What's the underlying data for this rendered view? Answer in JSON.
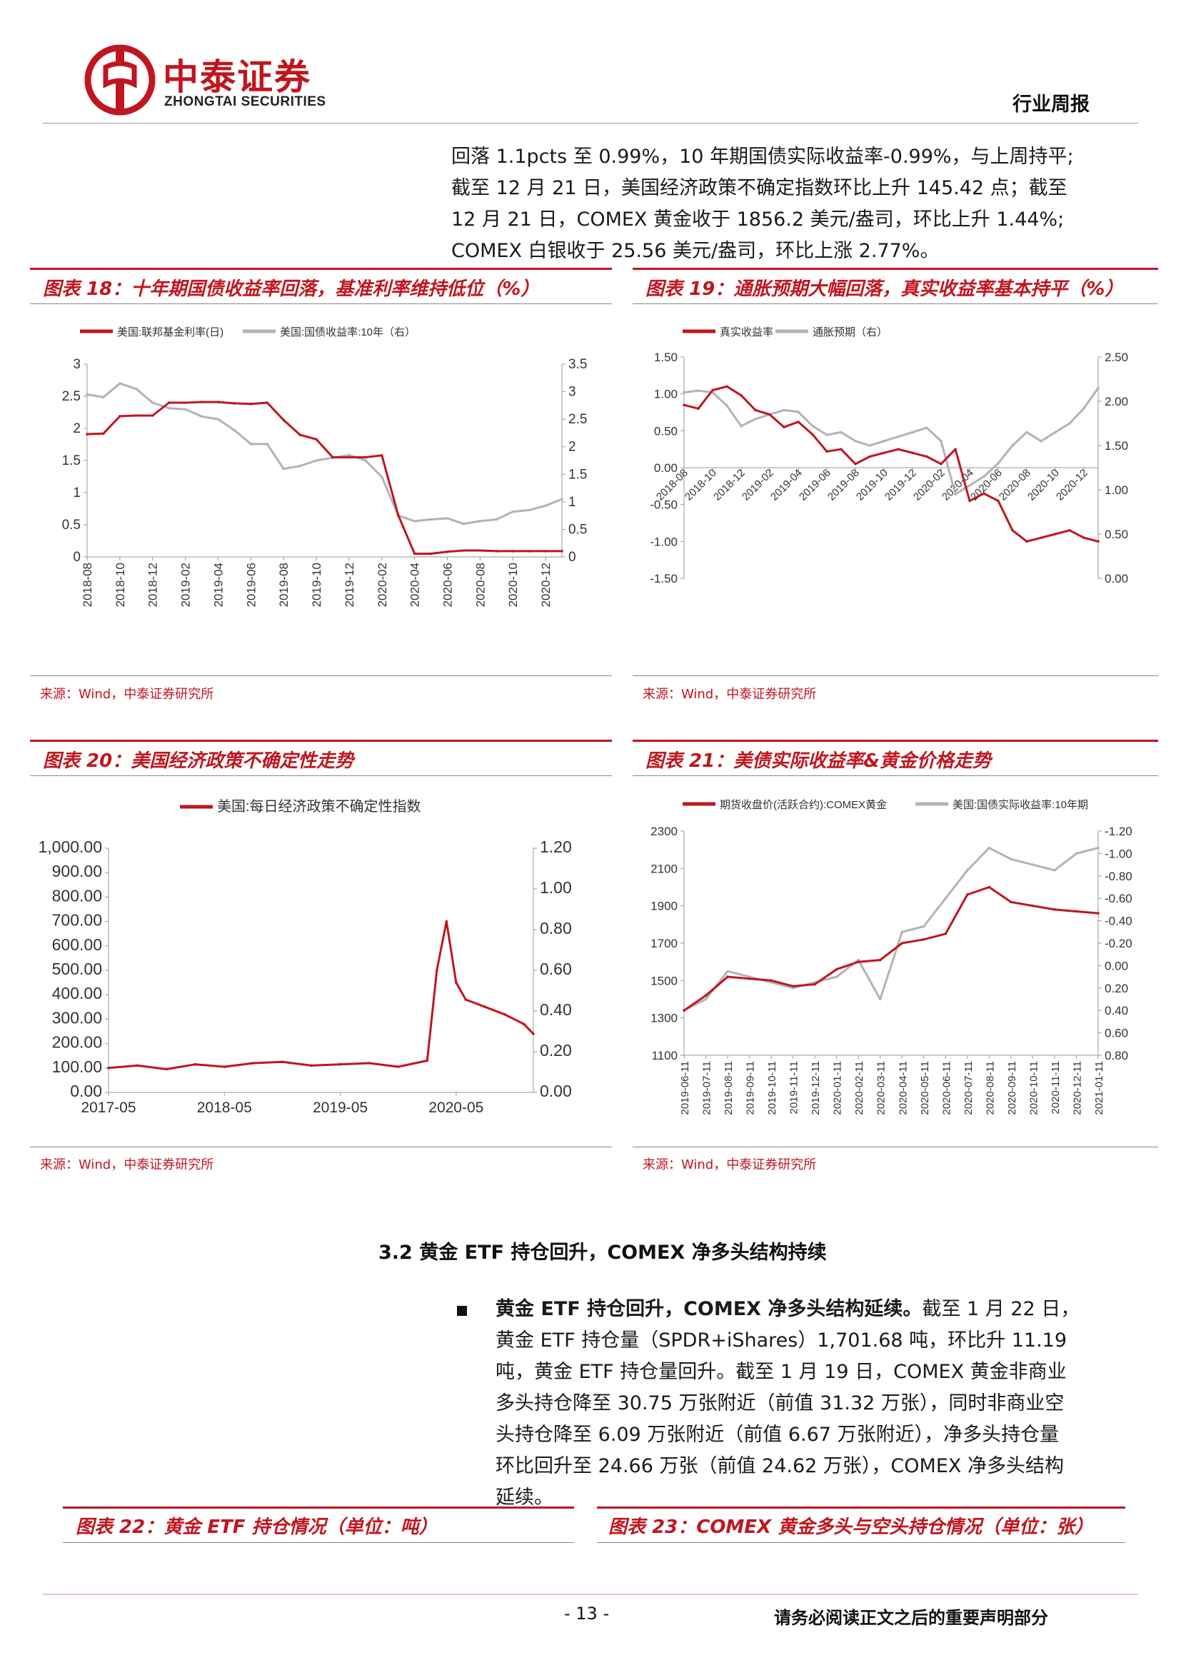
{
  "header": {
    "company_cn": "中泰证券",
    "company_en": "ZHONGTAI SECURITIES",
    "doc_type": "行业周报"
  },
  "intro_lines": [
    "回落 1.1pcts 至 0.99%，10 年期国债实际收益率-0.99%，与上周持平;",
    "截至 12 月 21 日，美国经济政策不确定指数环比上升 145.42 点；截至",
    "12 月 21 日，COMEX 黄金收于 1856.2 美元/盎司，环比上升 1.44%;",
    "COMEX 白银收于 25.56 美元/盎司，环比上涨 2.77%。"
  ],
  "figures": {
    "f18": {
      "title": "图表 18：十年期国债收益率回落，基准利率维持低位（%）",
      "source": "来源：Wind，中泰证券研究所"
    },
    "f19": {
      "title": "图表 19：通胀预期大幅回落，真实收益率基本持平（%）",
      "source": "来源：Wind，中泰证券研究所"
    },
    "f20": {
      "title": "图表 20：美国经济政策不确定性走势",
      "source": "来源：Wind，中泰证券研究所"
    },
    "f21": {
      "title": "图表 21：美债实际收益率&黄金价格走势",
      "source": "来源：Wind，中泰证券研究所"
    },
    "f22": {
      "title": "图表 22：黄金 ETF 持仓情况（单位：吨）"
    },
    "f23": {
      "title": "图表 23：COMEX 黄金多头与空头持仓情况（单位：张）"
    }
  },
  "section": {
    "heading": "3.2 黄金 ETF 持仓回升，COMEX 净多头结构持续",
    "bullet_bold": "黄金 ETF 持仓回升，COMEX 净多头结构延续。",
    "bullet_lines": [
      "截至 1 月 22 日，",
      "黄金 ETF 持仓量（SPDR+iShares）1,701.68 吨，环比升 11.19",
      "吨，黄金 ETF 持仓量回升。截至 1 月 19 日，COMEX 黄金非商业",
      "多头持仓降至 30.75 万张附近（前值 31.32 万张），同时非商业空",
      "头持仓降至 6.09 万张附近（前值 6.67 万张附近），净多头持仓量",
      "环比回升至 24.66 万张（前值 24.62 万张），COMEX 净多头结构",
      "延续。"
    ]
  },
  "footer": {
    "page": "- 13 -",
    "note": "请务必阅读正文之后的重要声明部分"
  },
  "colors": {
    "brand_red": "#c0161f",
    "series_gray": "#b3b3b3"
  },
  "chart_data": [
    {
      "id": "f18",
      "type": "line",
      "legend_location": "top",
      "series": [
        {
          "name": "美国:联邦基金利率(日)",
          "axis": "left",
          "color": "#c0161f",
          "x": [
            "2018-08",
            "2018-09",
            "2018-10",
            "2018-11",
            "2018-12",
            "2019-01",
            "2019-02",
            "2019-03",
            "2019-04",
            "2019-05",
            "2019-06",
            "2019-07",
            "2019-08",
            "2019-09",
            "2019-10",
            "2019-11",
            "2019-12",
            "2020-01",
            "2020-02",
            "2020-03",
            "2020-04",
            "2020-05",
            "2020-06",
            "2020-07",
            "2020-08",
            "2020-09",
            "2020-10",
            "2020-11",
            "2020-12",
            "2021-01"
          ],
          "values": [
            1.91,
            1.92,
            2.19,
            2.2,
            2.2,
            2.4,
            2.4,
            2.41,
            2.41,
            2.39,
            2.38,
            2.4,
            2.13,
            1.9,
            1.83,
            1.55,
            1.55,
            1.55,
            1.58,
            0.65,
            0.05,
            0.05,
            0.08,
            0.1,
            0.1,
            0.09,
            0.09,
            0.09,
            0.09,
            0.09
          ]
        },
        {
          "name": "美国:国债收益率:10年（右）",
          "axis": "right",
          "color": "#b3b3b3",
          "x": [
            "2018-08",
            "2018-09",
            "2018-10",
            "2018-11",
            "2018-12",
            "2019-01",
            "2019-02",
            "2019-03",
            "2019-04",
            "2019-05",
            "2019-06",
            "2019-07",
            "2019-08",
            "2019-09",
            "2019-10",
            "2019-11",
            "2019-12",
            "2020-01",
            "2020-02",
            "2020-03",
            "2020-04",
            "2020-05",
            "2020-06",
            "2020-07",
            "2020-08",
            "2020-09",
            "2020-10",
            "2020-11",
            "2020-12",
            "2021-01"
          ],
          "values": [
            2.95,
            2.9,
            3.15,
            3.05,
            2.8,
            2.7,
            2.68,
            2.55,
            2.5,
            2.3,
            2.05,
            2.05,
            1.6,
            1.65,
            1.75,
            1.8,
            1.85,
            1.75,
            1.45,
            0.75,
            0.65,
            0.68,
            0.7,
            0.6,
            0.65,
            0.68,
            0.82,
            0.85,
            0.93,
            1.05
          ]
        }
      ],
      "ylim_left": [
        0,
        3
      ],
      "ylim_right": [
        0,
        3.5
      ],
      "yticks_left": [
        "0",
        "0.5",
        "1",
        "1.5",
        "2",
        "2.5",
        "3"
      ],
      "yticks_right": [
        "0",
        "0.5",
        "1",
        "1.5",
        "2",
        "2.5",
        "3",
        "3.5"
      ],
      "xticks": [
        "2018-08",
        "2018-10",
        "2018-12",
        "2019-02",
        "2019-04",
        "2019-06",
        "2019-08",
        "2019-10",
        "2019-12",
        "2020-02",
        "2020-04",
        "2020-06",
        "2020-08",
        "2020-10",
        "2020-12"
      ]
    },
    {
      "id": "f19",
      "type": "line",
      "legend_location": "top",
      "series": [
        {
          "name": "真实收益率",
          "axis": "left",
          "color": "#c0161f",
          "x": [
            "2018-08",
            "2018-09",
            "2018-10",
            "2018-11",
            "2018-12",
            "2019-01",
            "2019-02",
            "2019-03",
            "2019-04",
            "2019-05",
            "2019-06",
            "2019-07",
            "2019-08",
            "2019-09",
            "2019-10",
            "2019-11",
            "2019-12",
            "2020-01",
            "2020-02",
            "2020-03",
            "2020-04",
            "2020-05",
            "2020-06",
            "2020-07",
            "2020-08",
            "2020-09",
            "2020-10",
            "2020-11",
            "2020-12",
            "2021-01"
          ],
          "values": [
            0.85,
            0.8,
            1.05,
            1.1,
            0.98,
            0.78,
            0.72,
            0.55,
            0.62,
            0.45,
            0.22,
            0.25,
            0.05,
            0.15,
            0.2,
            0.25,
            0.2,
            0.15,
            0.05,
            0.25,
            -0.45,
            -0.35,
            -0.45,
            -0.85,
            -1.0,
            -0.95,
            -0.9,
            -0.85,
            -0.95,
            -1.0
          ]
        },
        {
          "name": "通胀预期（右）",
          "axis": "right",
          "color": "#b3b3b3",
          "x": [
            "2018-08",
            "2018-09",
            "2018-10",
            "2018-11",
            "2018-12",
            "2019-01",
            "2019-02",
            "2019-03",
            "2019-04",
            "2019-05",
            "2019-06",
            "2019-07",
            "2019-08",
            "2019-09",
            "2019-10",
            "2019-11",
            "2019-12",
            "2020-01",
            "2020-02",
            "2020-03",
            "2020-04",
            "2020-05",
            "2020-06",
            "2020-07",
            "2020-08",
            "2020-09",
            "2020-10",
            "2020-11",
            "2020-12",
            "2021-01"
          ],
          "values": [
            2.1,
            2.12,
            2.1,
            1.95,
            1.72,
            1.8,
            1.85,
            1.9,
            1.88,
            1.72,
            1.62,
            1.65,
            1.55,
            1.5,
            1.55,
            1.6,
            1.65,
            1.7,
            1.55,
            0.95,
            1.05,
            1.15,
            1.3,
            1.5,
            1.65,
            1.55,
            1.65,
            1.75,
            1.92,
            2.15
          ]
        }
      ],
      "ylim_left": [
        -1.5,
        1.5
      ],
      "ylim_right": [
        0,
        2.5
      ],
      "yticks_left": [
        "-1.50",
        "-1.00",
        "-0.50",
        "0.00",
        "0.50",
        "1.00",
        "1.50"
      ],
      "yticks_right": [
        "0.00",
        "0.50",
        "1.00",
        "1.50",
        "2.00",
        "2.50"
      ],
      "xticks": [
        "2018-08",
        "2018-10",
        "2018-12",
        "2019-02",
        "2019-04",
        "2019-06",
        "2019-08",
        "2019-10",
        "2019-12",
        "2020-02",
        "2020-04",
        "2020-06",
        "2020-08",
        "2020-10",
        "2020-12"
      ]
    },
    {
      "id": "f20",
      "type": "line",
      "legend_location": "top",
      "series": [
        {
          "name": "美国:每日经济政策不确定性指数",
          "axis": "left",
          "color": "#c0161f",
          "x": [
            "2017-05",
            "2017-08",
            "2017-11",
            "2018-02",
            "2018-05",
            "2018-08",
            "2018-11",
            "2019-02",
            "2019-05",
            "2019-08",
            "2019-11",
            "2020-02",
            "2020-03",
            "2020-04",
            "2020-05",
            "2020-06",
            "2020-08",
            "2020-10",
            "2020-12",
            "2021-01"
          ],
          "values": [
            100,
            110,
            95,
            115,
            105,
            120,
            125,
            110,
            115,
            120,
            105,
            130,
            500,
            700,
            450,
            380,
            350,
            320,
            280,
            240
          ]
        }
      ],
      "ylim_left": [
        0,
        1000
      ],
      "ylim_right": [
        0,
        1.2
      ],
      "yticks_left": [
        "0.00",
        "100.00",
        "200.00",
        "300.00",
        "400.00",
        "500.00",
        "600.00",
        "700.00",
        "800.00",
        "900.00",
        "1,000.00"
      ],
      "yticks_right": [
        "0.00",
        "0.20",
        "0.40",
        "0.60",
        "0.80",
        "1.00",
        "1.20"
      ],
      "xticks": [
        "2017-05",
        "2018-05",
        "2019-05",
        "2020-05"
      ]
    },
    {
      "id": "f21",
      "type": "line",
      "legend_location": "top",
      "series": [
        {
          "name": "期货收盘价(活跃合约):COMEX黄金",
          "axis": "left",
          "color": "#c0161f",
          "x": [
            "2019-06",
            "2019-07",
            "2019-08",
            "2019-09",
            "2019-10",
            "2019-11",
            "2019-12",
            "2020-01",
            "2020-02",
            "2020-03",
            "2020-04",
            "2020-05",
            "2020-06",
            "2020-07",
            "2020-08",
            "2020-09",
            "2020-10",
            "2020-11",
            "2020-12",
            "2021-01"
          ],
          "values": [
            1340,
            1420,
            1520,
            1510,
            1500,
            1470,
            1480,
            1560,
            1600,
            1610,
            1700,
            1720,
            1750,
            1960,
            2000,
            1920,
            1900,
            1880,
            1870,
            1860
          ]
        },
        {
          "name": "美国:国债实际收益率:10年期",
          "axis": "right",
          "color": "#b3b3b3",
          "x": [
            "2019-06",
            "2019-07",
            "2019-08",
            "2019-09",
            "2019-10",
            "2019-11",
            "2019-12",
            "2020-01",
            "2020-02",
            "2020-03",
            "2020-04",
            "2020-05",
            "2020-06",
            "2020-07",
            "2020-08",
            "2020-09",
            "2020-10",
            "2020-11",
            "2020-12",
            "2021-01"
          ],
          "values": [
            0.4,
            0.3,
            0.05,
            0.1,
            0.15,
            0.2,
            0.15,
            0.1,
            -0.05,
            0.3,
            -0.3,
            -0.35,
            -0.6,
            -0.85,
            -1.05,
            -0.95,
            -0.9,
            -0.85,
            -1.0,
            -1.05
          ]
        }
      ],
      "ylim_left": [
        1100,
        2300
      ],
      "ylim_right": [
        0.8,
        -1.2
      ],
      "yticks_left": [
        "1100",
        "1300",
        "1500",
        "1700",
        "1900",
        "2100",
        "2300"
      ],
      "yticks_right": [
        "0.80",
        "0.60",
        "0.40",
        "0.20",
        "0.00",
        "-0.20",
        "-0.40",
        "-0.60",
        "-0.80",
        "-1.00",
        "-1.20"
      ],
      "xticks": [
        "2019-06-11",
        "2019-07-11",
        "2019-08-11",
        "2019-09-11",
        "2019-10-11",
        "2019-11-11",
        "2019-12-11",
        "2020-01-11",
        "2020-02-11",
        "2020-03-11",
        "2020-04-11",
        "2020-05-11",
        "2020-06-11",
        "2020-07-11",
        "2020-08-11",
        "2020-09-11",
        "2020-10-11",
        "2020-11-11",
        "2020-12-11",
        "2021-01-11"
      ]
    }
  ]
}
